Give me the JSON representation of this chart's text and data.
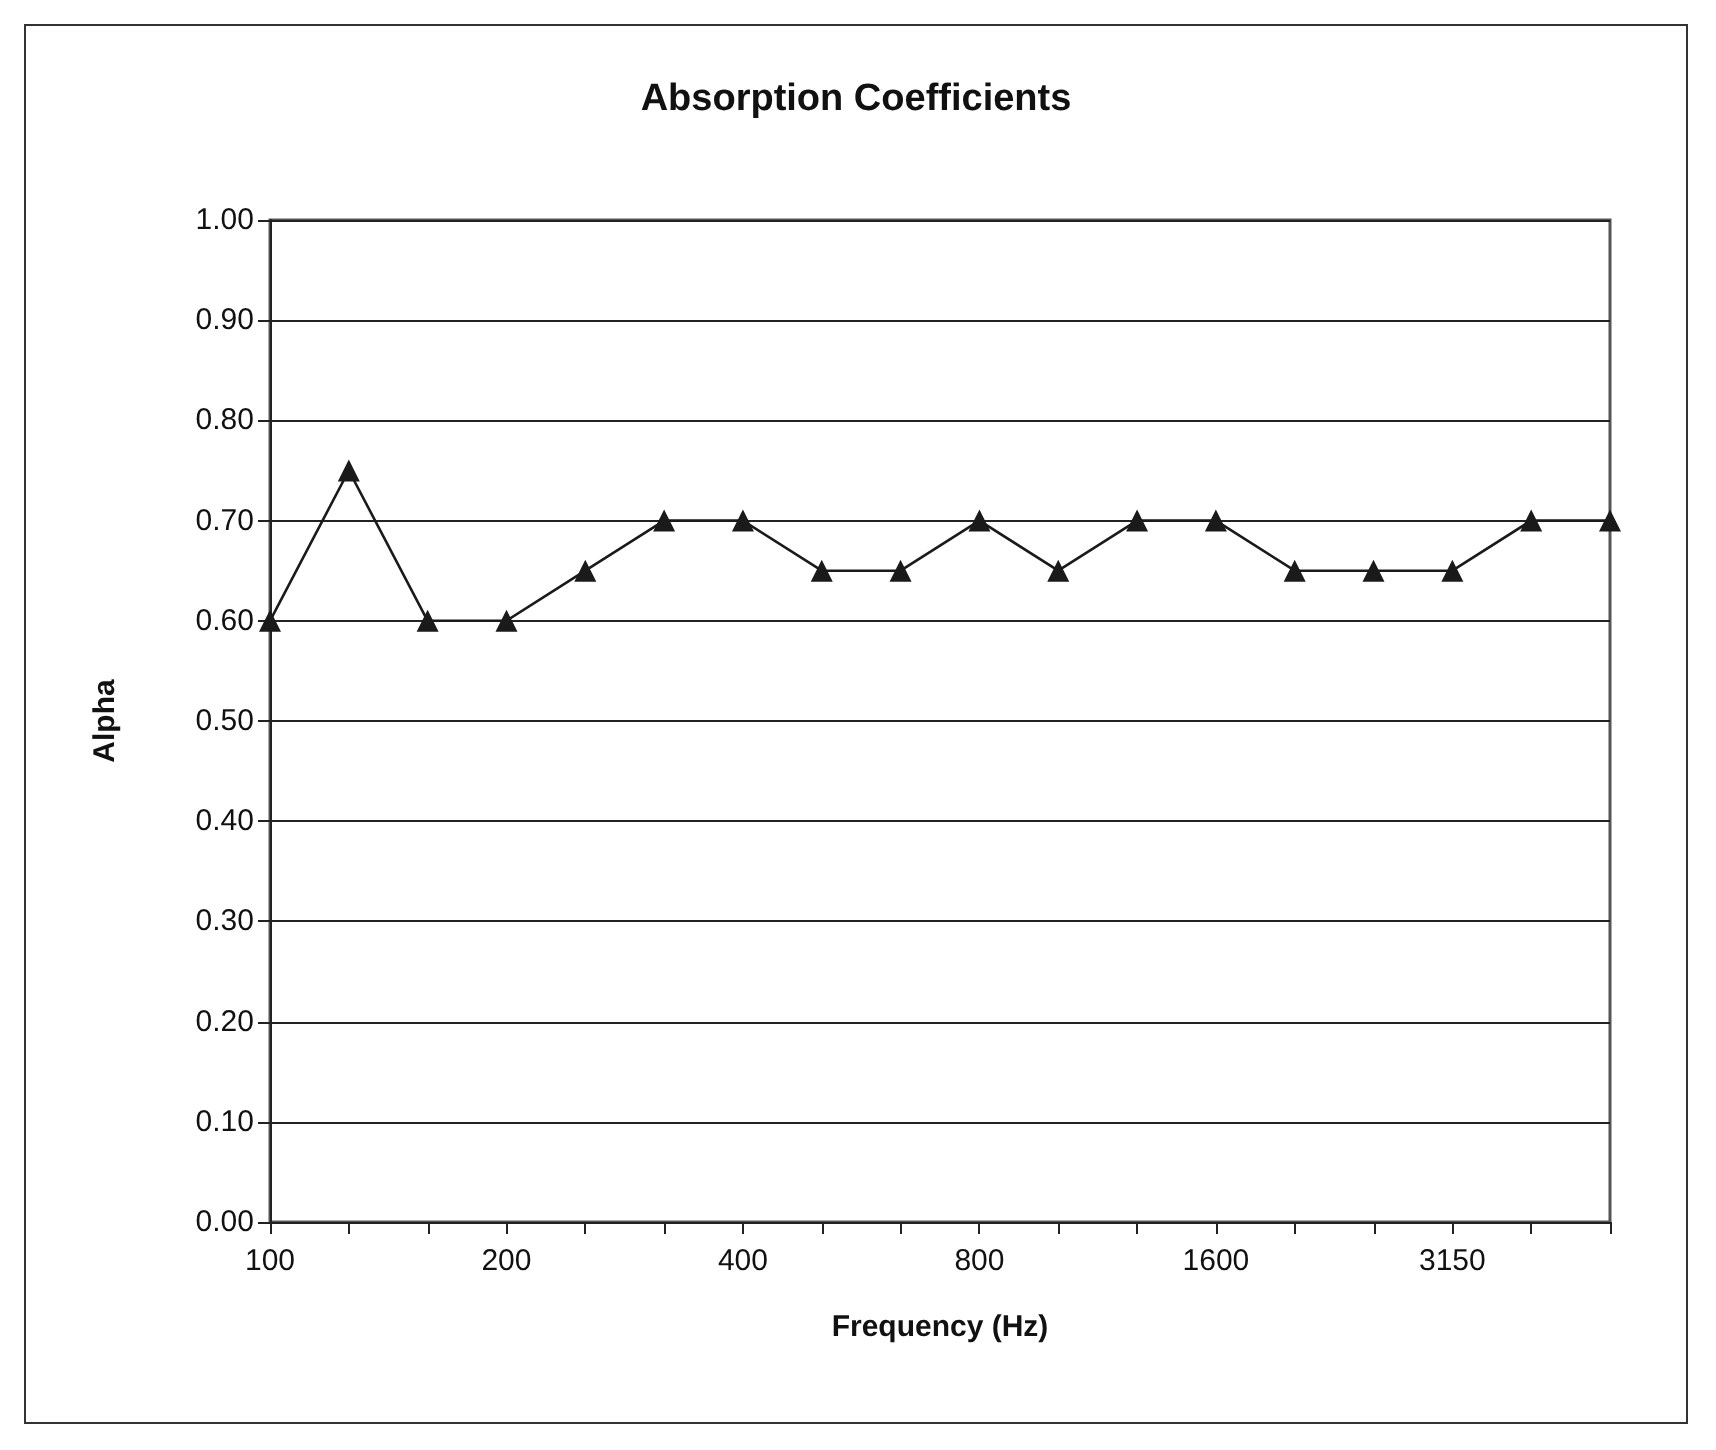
{
  "chart_data": {
    "type": "line",
    "title": "Absorption Coefficients",
    "xlabel": "Frequency (Hz)",
    "ylabel": "Alpha",
    "categories": [
      "100",
      null,
      null,
      "200",
      null,
      null,
      "400",
      null,
      null,
      "800",
      null,
      null,
      "1600",
      null,
      null,
      "3150",
      null,
      null
    ],
    "series": [
      {
        "color": "#1a1a1a",
        "values": [
          0.6,
          0.75,
          0.6,
          0.6,
          0.65,
          0.7,
          0.7,
          0.65,
          0.65,
          0.7,
          0.65,
          0.7,
          0.7,
          0.65,
          0.65,
          0.65,
          0.7,
          0.7
        ]
      }
    ],
    "ylim": [
      0,
      1
    ],
    "yticks": [
      {
        "value": 0,
        "label": "0.00"
      },
      {
        "value": 0.1,
        "label": "0.10"
      },
      {
        "value": 0.2,
        "label": "0.20"
      },
      {
        "value": 0.3,
        "label": "0.30"
      },
      {
        "value": 0.4,
        "label": "0.40"
      },
      {
        "value": 0.5,
        "label": "0.50"
      },
      {
        "value": 0.6,
        "label": "0.60"
      },
      {
        "value": 0.7,
        "label": "0.70"
      },
      {
        "value": 0.8,
        "label": "0.80"
      },
      {
        "value": 0.9,
        "label": "0.90"
      },
      {
        "value": 1,
        "label": "1.00"
      }
    ],
    "grid": "y",
    "marker": "triangle",
    "line_style": "solid"
  }
}
